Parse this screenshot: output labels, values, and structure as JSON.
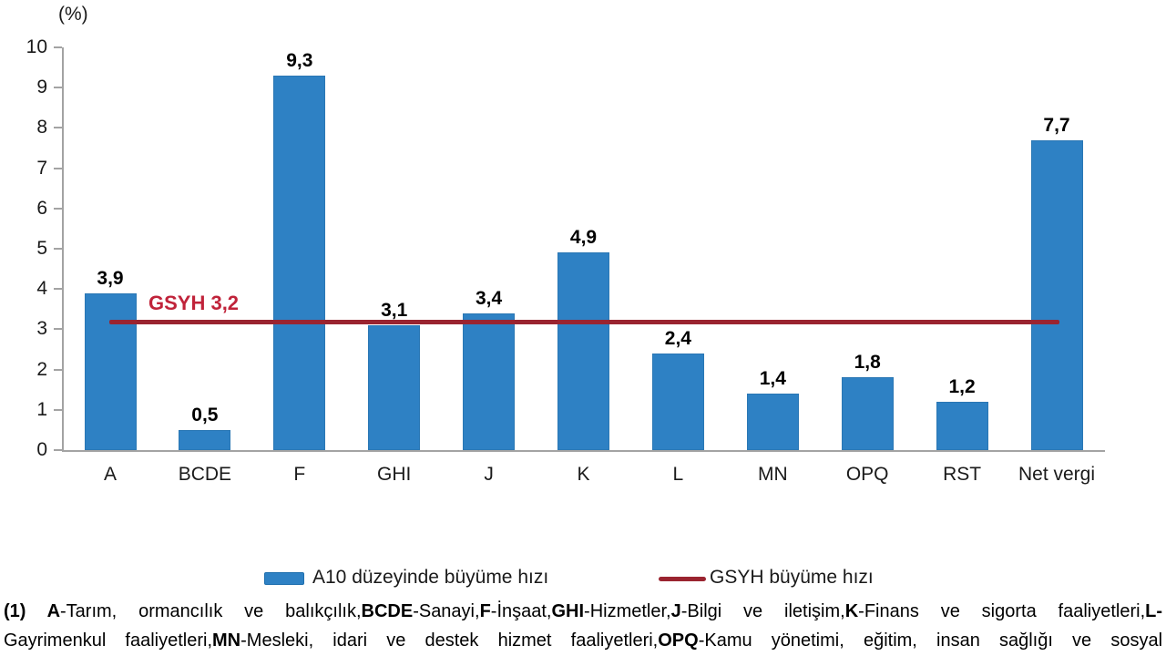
{
  "chart_data": {
    "type": "bar",
    "title": "",
    "ylabel": "(%)",
    "xlabel": "",
    "ylim": [
      0,
      10
    ],
    "ytick_step": 1,
    "grid": false,
    "legend_position": "bottom",
    "categories": [
      "A",
      "BCDE",
      "F",
      "GHI",
      "J",
      "K",
      "L",
      "MN",
      "OPQ",
      "RST",
      "Net vergi"
    ],
    "values": [
      3.9,
      0.5,
      9.3,
      3.1,
      3.4,
      4.9,
      2.4,
      1.4,
      1.8,
      1.2,
      7.7
    ],
    "value_labels": [
      "3,9",
      "0,5",
      "9,3",
      "3,1",
      "3,4",
      "4,9",
      "2,4",
      "1,4",
      "1,8",
      "1,2",
      "7,7"
    ],
    "reference_line": {
      "value": 3.2,
      "label": "GSYH 3,2"
    },
    "series_name": "A10 düzeyinde büyüme hızı",
    "reference_series_name": "GSYH büyüme hızı"
  },
  "axis": {
    "percent_label": "(%)"
  },
  "legend": {
    "bar_series_label": "A10 düzeyinde büyüme hızı",
    "line_series_label": "GSYH büyüme hızı"
  },
  "annotation": {
    "gsyh_label": "GSYH 3,2"
  },
  "colors": {
    "bar_fill": "#2e81c4",
    "reference_line": "#9a2430",
    "annotation_text": "#c0233a",
    "axis_gray": "#a3a3a3"
  },
  "footnote": {
    "line1": [
      {
        "text": "(1) ",
        "bold": true
      },
      {
        "text": "A",
        "bold": true
      },
      {
        "text": "-Tarım, ormancılık ve balıkçılık,",
        "bold": false
      },
      {
        "text": "BCDE",
        "bold": true
      },
      {
        "text": "-Sanayi,",
        "bold": false
      },
      {
        "text": "F",
        "bold": true
      },
      {
        "text": "-İnşaat,",
        "bold": false
      },
      {
        "text": "GHI",
        "bold": true
      },
      {
        "text": "-Hizmetler,",
        "bold": false
      },
      {
        "text": "J",
        "bold": true
      },
      {
        "text": "-Bilgi ve iletişim,",
        "bold": false
      },
      {
        "text": "K",
        "bold": true
      },
      {
        "text": "-Finans ve sigorta faaliyetleri,",
        "bold": false
      },
      {
        "text": "L-",
        "bold": true
      }
    ],
    "line2": [
      {
        "text": "Gayrimenkul faaliyetleri,",
        "bold": false
      },
      {
        "text": "MN",
        "bold": true
      },
      {
        "text": "-Mesleki, idari ve destek hizmet faaliyetleri,",
        "bold": false
      },
      {
        "text": "OPQ",
        "bold": true
      },
      {
        "text": "-Kamu yönetimi, eğitim, insan sağlığı ve sosyal",
        "bold": false
      }
    ]
  }
}
